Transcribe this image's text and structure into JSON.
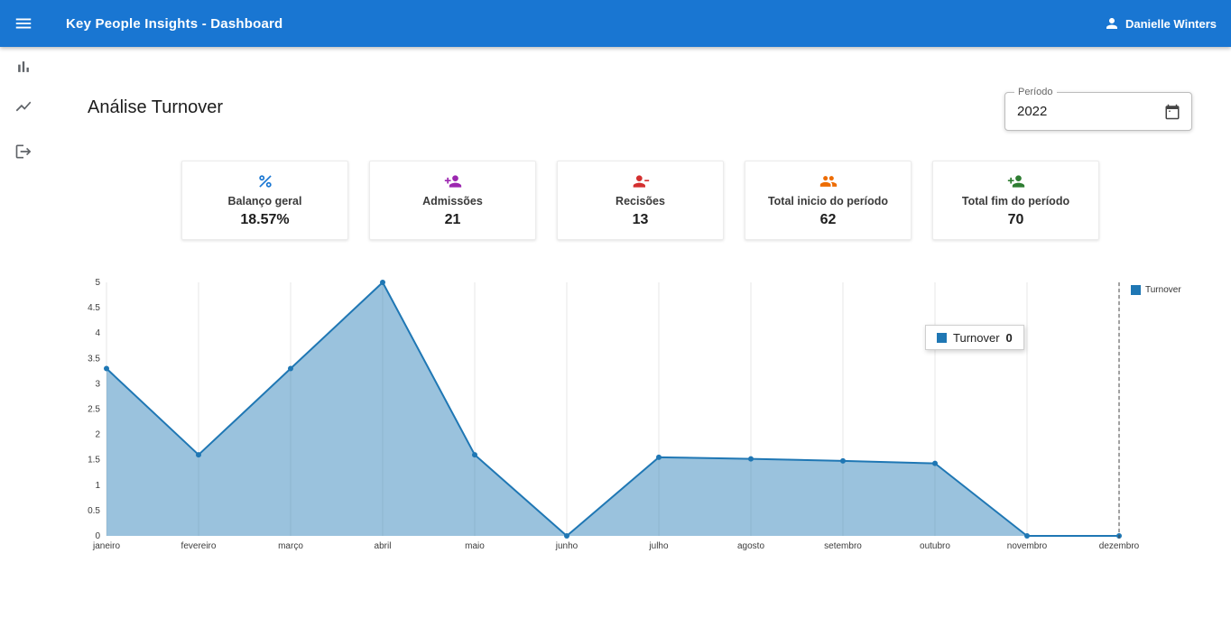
{
  "app_bar": {
    "title": "Key People Insights - Dashboard",
    "user": "Danielle Winters"
  },
  "sidebar": {
    "items": [
      {
        "name": "bar-chart"
      },
      {
        "name": "line-chart"
      },
      {
        "name": "logout"
      }
    ]
  },
  "page": {
    "title": "Análise Turnover",
    "period": {
      "label": "Período",
      "value": "2022"
    }
  },
  "cards": [
    {
      "label": "Balanço geral",
      "value": "18.57%",
      "color": "#1976d2",
      "icon": "percent-icon"
    },
    {
      "label": "Admissões",
      "value": "21",
      "color": "#9c27b0",
      "icon": "person-add-icon"
    },
    {
      "label": "Recisões",
      "value": "13",
      "color": "#d32f2f",
      "icon": "person-remove-icon"
    },
    {
      "label": "Total inicio do período",
      "value": "62",
      "color": "#ed6c02",
      "icon": "group-icon"
    },
    {
      "label": "Total fim do período",
      "value": "70",
      "color": "#2e7d32",
      "icon": "person-add-icon"
    }
  ],
  "chart_data": {
    "type": "area",
    "x": [
      "janeiro",
      "fevereiro",
      "março",
      "abril",
      "maio",
      "junho",
      "julho",
      "agosto",
      "setembro",
      "outubro",
      "novembro",
      "dezembro"
    ],
    "series": [
      {
        "name": "Turnover",
        "values": [
          3.3,
          1.6,
          3.3,
          5,
          1.6,
          0,
          1.55,
          1.52,
          1.48,
          1.43,
          0,
          0
        ]
      }
    ],
    "ylim": [
      0,
      5
    ],
    "ytick_step": 0.5,
    "line_color": "#1f77b4",
    "fill_color": "rgba(31,119,180,0.45)",
    "grid": "vertical",
    "legend": {
      "label": "Turnover",
      "position": "right-top"
    },
    "tooltip": {
      "label": "Turnover",
      "value": "0",
      "month_index": 11
    }
  }
}
